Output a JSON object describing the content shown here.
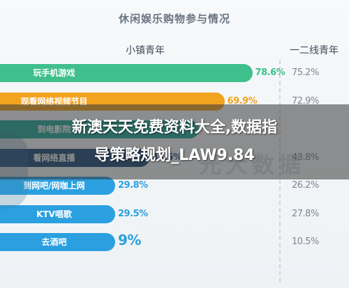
{
  "title": "休闲娱乐购物参与情况",
  "columns": {
    "a": "小镇青年",
    "b": "一二线青年"
  },
  "overlay": {
    "line1": "新澳天天免费资料大全,数据指",
    "line2": "导策略规划_LAW9.84"
  },
  "watermark": "光大数据",
  "colors": {
    "green": "#3fbf8c",
    "orange": "#f3a31f",
    "teal": "#1fa89a",
    "navy": "#1e4a78",
    "blue": "#2ba0e0",
    "muted": "#7d8690"
  },
  "chart_data": {
    "type": "bar",
    "title": "休闲娱乐购物参与情况",
    "categories": [
      "玩手机游戏",
      "观看网络视频节目",
      "到电影院",
      "看网络直播",
      "到网吧/网咖上网",
      "KTV唱歌",
      "去酒吧"
    ],
    "category_labels": [
      "玩手机游戏",
      "观看网络视频节目",
      "到电影院",
      "看网络直播",
      "到网吧/网咖上网",
      "KTV唱歌",
      "去酒吧"
    ],
    "series": [
      {
        "name": "小镇青年",
        "values": [
          78.6,
          69.9,
          62.0,
          46.5,
          29.8,
          29.5,
          9.0
        ],
        "labels": [
          "78.6%",
          "69.9%",
          "",
          "46.5%",
          "29.8%",
          "29.5%",
          "9%"
        ]
      },
      {
        "name": "一二线青年",
        "values": [
          75.2,
          72.9,
          68.0,
          43.8,
          26.2,
          27.8,
          10.5
        ],
        "labels": [
          "75.2%",
          "72.9%",
          "",
          "43.8%",
          "26.2%",
          "27.8%",
          "10.5%"
        ]
      }
    ],
    "bar_colors": [
      "#3fbf8c",
      "#f3a31f",
      "#1fa89a",
      "#1e4a78",
      "#2ba0e0",
      "#2ba0e0",
      "#2ba0e0"
    ],
    "value_colors": [
      "#3fbf8c",
      "#f3a31f",
      "#1fa89a",
      "#1e4a78",
      "#2ba0e0",
      "#2ba0e0",
      "#2ba0e0"
    ],
    "xlim": [
      0,
      100
    ],
    "grid": false,
    "legend": "top"
  }
}
